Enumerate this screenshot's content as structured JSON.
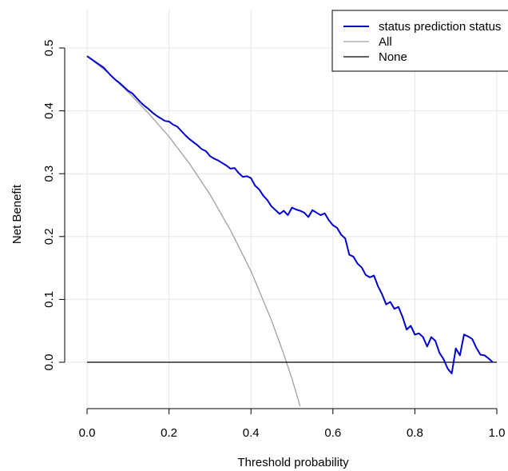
{
  "chart_data": {
    "type": "line",
    "title": "",
    "xlabel": "Threshold probability",
    "ylabel": "Net Benefit",
    "xlim": [
      0.0,
      1.0
    ],
    "ylim": [
      -0.07,
      0.51
    ],
    "xticks": [
      "0.0",
      "0.2",
      "0.4",
      "0.6",
      "0.8",
      "1.0"
    ],
    "xtick_values": [
      0.0,
      0.2,
      0.4,
      0.6,
      0.8,
      1.0
    ],
    "yticks": [
      "0.0",
      "0.1",
      "0.2",
      "0.3",
      "0.4",
      "0.5"
    ],
    "ytick_values": [
      0.0,
      0.1,
      0.2,
      0.3,
      0.4,
      0.5
    ],
    "grid": true,
    "legend_position": "top-right",
    "series": [
      {
        "name": "status prediction status",
        "color": "#0000cd",
        "x": [
          0.0,
          0.02,
          0.04,
          0.05,
          0.06,
          0.07,
          0.08,
          0.09,
          0.1,
          0.11,
          0.12,
          0.13,
          0.14,
          0.15,
          0.16,
          0.17,
          0.18,
          0.19,
          0.2,
          0.21,
          0.22,
          0.23,
          0.24,
          0.25,
          0.26,
          0.27,
          0.28,
          0.29,
          0.3,
          0.31,
          0.32,
          0.33,
          0.34,
          0.35,
          0.36,
          0.37,
          0.38,
          0.39,
          0.4,
          0.41,
          0.42,
          0.43,
          0.44,
          0.45,
          0.46,
          0.47,
          0.48,
          0.49,
          0.5,
          0.51,
          0.52,
          0.53,
          0.54,
          0.55,
          0.56,
          0.57,
          0.58,
          0.59,
          0.6,
          0.61,
          0.62,
          0.63,
          0.64,
          0.65,
          0.66,
          0.67,
          0.68,
          0.69,
          0.7,
          0.71,
          0.72,
          0.73,
          0.74,
          0.75,
          0.76,
          0.77,
          0.78,
          0.79,
          0.8,
          0.81,
          0.82,
          0.83,
          0.84,
          0.85,
          0.86,
          0.87,
          0.88,
          0.89,
          0.9,
          0.91,
          0.92,
          0.93,
          0.94,
          0.95,
          0.96,
          0.97,
          0.98,
          0.99
        ],
        "y": [
          0.487,
          0.478,
          0.469,
          0.462,
          0.455,
          0.449,
          0.444,
          0.438,
          0.432,
          0.428,
          0.421,
          0.414,
          0.408,
          0.403,
          0.397,
          0.392,
          0.388,
          0.384,
          0.383,
          0.378,
          0.375,
          0.368,
          0.361,
          0.355,
          0.35,
          0.345,
          0.339,
          0.336,
          0.328,
          0.324,
          0.321,
          0.317,
          0.313,
          0.308,
          0.309,
          0.301,
          0.295,
          0.296,
          0.293,
          0.281,
          0.275,
          0.265,
          0.258,
          0.248,
          0.242,
          0.236,
          0.241,
          0.234,
          0.246,
          0.243,
          0.241,
          0.238,
          0.231,
          0.242,
          0.238,
          0.234,
          0.237,
          0.226,
          0.218,
          0.214,
          0.203,
          0.197,
          0.171,
          0.168,
          0.157,
          0.151,
          0.139,
          0.135,
          0.138,
          0.121,
          0.108,
          0.092,
          0.096,
          0.085,
          0.088,
          0.072,
          0.052,
          0.058,
          0.044,
          0.046,
          0.04,
          0.025,
          0.04,
          0.034,
          0.015,
          0.005,
          -0.01,
          -0.018,
          0.022,
          0.011,
          0.044,
          0.041,
          0.037,
          0.023,
          0.012,
          0.011,
          0.006,
          0.0
        ]
      },
      {
        "name": "All",
        "color": "#a0a0a0",
        "x": [
          0.0,
          0.05,
          0.1,
          0.15,
          0.2,
          0.25,
          0.3,
          0.35,
          0.4,
          0.45,
          0.48,
          0.5,
          0.52
        ],
        "y": [
          0.487,
          0.461,
          0.43,
          0.396,
          0.359,
          0.316,
          0.267,
          0.21,
          0.145,
          0.067,
          0.013,
          -0.026,
          -0.07
        ]
      },
      {
        "name": "None",
        "color": "#000000",
        "x": [
          0.0,
          1.0
        ],
        "y": [
          0.0,
          0.0
        ]
      }
    ]
  }
}
